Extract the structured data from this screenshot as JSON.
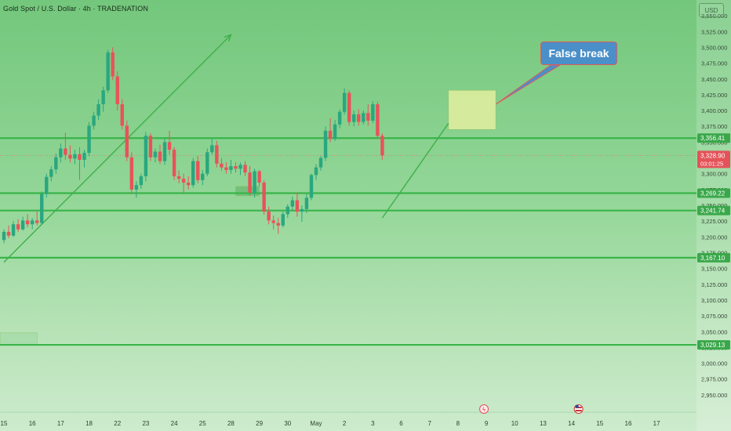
{
  "header": {
    "title": "Gold Spot / U.S. Dollar · 4h · TRADENATION",
    "currency_button": "USD"
  },
  "annotation": {
    "label": "False break"
  },
  "colors": {
    "bull": "#2aa77f",
    "bear": "#e9525a",
    "level_line": "#39b54a",
    "zone_fill": "#e3ef9f",
    "trend_line": "#3fb04a",
    "price_label_green": "#3aa84a",
    "price_label_red": "#e45359"
  },
  "chart_data": {
    "type": "candlestick",
    "title": "Gold Spot / U.S. Dollar · 4h · TRADENATION",
    "y_axis": {
      "min": 2930,
      "max": 3575,
      "ticks": [
        2950,
        2975,
        3000,
        3025,
        3050,
        3075,
        3100,
        3125,
        3150,
        3175,
        3200,
        3225,
        3250,
        3275,
        3300,
        3325,
        3350,
        3375,
        3400,
        3425,
        3450,
        3475,
        3500,
        3525,
        3550
      ]
    },
    "x_axis": {
      "tick_labels": [
        {
          "label": "15",
          "index": 0
        },
        {
          "label": "16",
          "index": 6
        },
        {
          "label": "17",
          "index": 12
        },
        {
          "label": "18",
          "index": 18
        },
        {
          "label": "22",
          "index": 24
        },
        {
          "label": "23",
          "index": 30
        },
        {
          "label": "24",
          "index": 36
        },
        {
          "label": "25",
          "index": 42
        },
        {
          "label": "28",
          "index": 48
        },
        {
          "label": "29",
          "index": 54
        },
        {
          "label": "30",
          "index": 60
        },
        {
          "label": "May",
          "index": 66
        },
        {
          "label": "2",
          "index": 72
        },
        {
          "label": "3",
          "index": 78
        },
        {
          "label": "6",
          "index": 84
        },
        {
          "label": "7",
          "index": 90
        },
        {
          "label": "8",
          "index": 96
        },
        {
          "label": "9",
          "index": 102
        },
        {
          "label": "10",
          "index": 108
        },
        {
          "label": "13",
          "index": 114
        },
        {
          "label": "14",
          "index": 120
        },
        {
          "label": "15",
          "index": 126
        },
        {
          "label": "16",
          "index": 132
        },
        {
          "label": "17",
          "index": 138
        }
      ]
    },
    "candles": [
      {
        "o": 3195,
        "h": 3212,
        "l": 3190,
        "c": 3208
      },
      {
        "o": 3208,
        "h": 3218,
        "l": 3198,
        "c": 3202
      },
      {
        "o": 3202,
        "h": 3225,
        "l": 3200,
        "c": 3220
      },
      {
        "o": 3220,
        "h": 3228,
        "l": 3208,
        "c": 3212
      },
      {
        "o": 3212,
        "h": 3232,
        "l": 3210,
        "c": 3226
      },
      {
        "o": 3226,
        "h": 3236,
        "l": 3215,
        "c": 3220
      },
      {
        "o": 3220,
        "h": 3230,
        "l": 3212,
        "c": 3226
      },
      {
        "o": 3226,
        "h": 3240,
        "l": 3218,
        "c": 3222
      },
      {
        "o": 3222,
        "h": 3272,
        "l": 3220,
        "c": 3268
      },
      {
        "o": 3268,
        "h": 3300,
        "l": 3262,
        "c": 3295
      },
      {
        "o": 3295,
        "h": 3312,
        "l": 3288,
        "c": 3307
      },
      {
        "o": 3307,
        "h": 3332,
        "l": 3300,
        "c": 3326
      },
      {
        "o": 3326,
        "h": 3348,
        "l": 3318,
        "c": 3340
      },
      {
        "o": 3340,
        "h": 3365,
        "l": 3322,
        "c": 3330
      },
      {
        "o": 3330,
        "h": 3345,
        "l": 3318,
        "c": 3324
      },
      {
        "o": 3324,
        "h": 3338,
        "l": 3315,
        "c": 3331
      },
      {
        "o": 3331,
        "h": 3342,
        "l": 3290,
        "c": 3322
      },
      {
        "o": 3322,
        "h": 3338,
        "l": 3310,
        "c": 3333
      },
      {
        "o": 3333,
        "h": 3382,
        "l": 3328,
        "c": 3376
      },
      {
        "o": 3376,
        "h": 3398,
        "l": 3370,
        "c": 3392
      },
      {
        "o": 3392,
        "h": 3418,
        "l": 3385,
        "c": 3410
      },
      {
        "o": 3410,
        "h": 3438,
        "l": 3398,
        "c": 3432
      },
      {
        "o": 3432,
        "h": 3496,
        "l": 3428,
        "c": 3492
      },
      {
        "o": 3492,
        "h": 3500,
        "l": 3448,
        "c": 3454
      },
      {
        "o": 3454,
        "h": 3462,
        "l": 3400,
        "c": 3410
      },
      {
        "o": 3410,
        "h": 3418,
        "l": 3370,
        "c": 3376
      },
      {
        "o": 3376,
        "h": 3384,
        "l": 3320,
        "c": 3326
      },
      {
        "o": 3326,
        "h": 3334,
        "l": 3268,
        "c": 3275
      },
      {
        "o": 3275,
        "h": 3288,
        "l": 3262,
        "c": 3282
      },
      {
        "o": 3282,
        "h": 3300,
        "l": 3276,
        "c": 3296
      },
      {
        "o": 3296,
        "h": 3366,
        "l": 3288,
        "c": 3360
      },
      {
        "o": 3360,
        "h": 3364,
        "l": 3320,
        "c": 3326
      },
      {
        "o": 3326,
        "h": 3340,
        "l": 3318,
        "c": 3335
      },
      {
        "o": 3335,
        "h": 3346,
        "l": 3315,
        "c": 3320
      },
      {
        "o": 3320,
        "h": 3356,
        "l": 3314,
        "c": 3350
      },
      {
        "o": 3350,
        "h": 3368,
        "l": 3330,
        "c": 3338
      },
      {
        "o": 3338,
        "h": 3342,
        "l": 3290,
        "c": 3296
      },
      {
        "o": 3296,
        "h": 3305,
        "l": 3285,
        "c": 3292
      },
      {
        "o": 3292,
        "h": 3300,
        "l": 3270,
        "c": 3286
      },
      {
        "o": 3286,
        "h": 3296,
        "l": 3275,
        "c": 3282
      },
      {
        "o": 3282,
        "h": 3325,
        "l": 3278,
        "c": 3320
      },
      {
        "o": 3320,
        "h": 3328,
        "l": 3285,
        "c": 3290
      },
      {
        "o": 3290,
        "h": 3306,
        "l": 3282,
        "c": 3300
      },
      {
        "o": 3300,
        "h": 3340,
        "l": 3296,
        "c": 3334
      },
      {
        "o": 3334,
        "h": 3355,
        "l": 3330,
        "c": 3345
      },
      {
        "o": 3345,
        "h": 3352,
        "l": 3310,
        "c": 3316
      },
      {
        "o": 3316,
        "h": 3325,
        "l": 3305,
        "c": 3310
      },
      {
        "o": 3310,
        "h": 3318,
        "l": 3300,
        "c": 3306
      },
      {
        "o": 3306,
        "h": 3322,
        "l": 3300,
        "c": 3312
      },
      {
        "o": 3312,
        "h": 3318,
        "l": 3302,
        "c": 3308
      },
      {
        "o": 3308,
        "h": 3318,
        "l": 3298,
        "c": 3314
      },
      {
        "o": 3314,
        "h": 3320,
        "l": 3296,
        "c": 3302
      },
      {
        "o": 3302,
        "h": 3312,
        "l": 3265,
        "c": 3270
      },
      {
        "o": 3270,
        "h": 3308,
        "l": 3262,
        "c": 3304
      },
      {
        "o": 3304,
        "h": 3306,
        "l": 3280,
        "c": 3286
      },
      {
        "o": 3286,
        "h": 3290,
        "l": 3235,
        "c": 3240
      },
      {
        "o": 3240,
        "h": 3248,
        "l": 3220,
        "c": 3226
      },
      {
        "o": 3226,
        "h": 3234,
        "l": 3212,
        "c": 3222
      },
      {
        "o": 3222,
        "h": 3230,
        "l": 3205,
        "c": 3218
      },
      {
        "o": 3218,
        "h": 3240,
        "l": 3215,
        "c": 3236
      },
      {
        "o": 3236,
        "h": 3252,
        "l": 3230,
        "c": 3248
      },
      {
        "o": 3248,
        "h": 3264,
        "l": 3242,
        "c": 3258
      },
      {
        "o": 3258,
        "h": 3270,
        "l": 3232,
        "c": 3240
      },
      {
        "o": 3240,
        "h": 3250,
        "l": 3224,
        "c": 3244
      },
      {
        "o": 3244,
        "h": 3268,
        "l": 3238,
        "c": 3262
      },
      {
        "o": 3262,
        "h": 3300,
        "l": 3258,
        "c": 3298
      },
      {
        "o": 3298,
        "h": 3315,
        "l": 3290,
        "c": 3310
      },
      {
        "o": 3310,
        "h": 3328,
        "l": 3305,
        "c": 3325
      },
      {
        "o": 3325,
        "h": 3375,
        "l": 3320,
        "c": 3368
      },
      {
        "o": 3368,
        "h": 3388,
        "l": 3350,
        "c": 3355
      },
      {
        "o": 3355,
        "h": 3385,
        "l": 3352,
        "c": 3378
      },
      {
        "o": 3378,
        "h": 3402,
        "l": 3372,
        "c": 3398
      },
      {
        "o": 3398,
        "h": 3435,
        "l": 3394,
        "c": 3428
      },
      {
        "o": 3428,
        "h": 3432,
        "l": 3376,
        "c": 3382
      },
      {
        "o": 3382,
        "h": 3400,
        "l": 3375,
        "c": 3394
      },
      {
        "o": 3394,
        "h": 3402,
        "l": 3376,
        "c": 3382
      },
      {
        "o": 3382,
        "h": 3400,
        "l": 3378,
        "c": 3396
      },
      {
        "o": 3396,
        "h": 3410,
        "l": 3376,
        "c": 3384
      },
      {
        "o": 3384,
        "h": 3415,
        "l": 3380,
        "c": 3410
      },
      {
        "o": 3410,
        "h": 3414,
        "l": 3356,
        "c": 3360
      },
      {
        "o": 3360,
        "h": 3364,
        "l": 3322,
        "c": 3329
      }
    ],
    "levels": [
      3356.41,
      3269.22,
      3241.74,
      3167.1,
      3029.13
    ],
    "price_labels": [
      {
        "value": 3356.41,
        "text": "3,356.41",
        "style": "green"
      },
      {
        "value": 3328.9,
        "text": "3,328.90",
        "sub": "03:01:25",
        "style": "red"
      },
      {
        "value": 3269.22,
        "text": "3,269.22",
        "style": "green"
      },
      {
        "value": 3241.74,
        "text": "3,241.74",
        "style": "green"
      },
      {
        "value": 3167.1,
        "text": "3,167.10",
        "style": "green"
      },
      {
        "value": 3029.13,
        "text": "3,029.13",
        "style": "green"
      }
    ],
    "current_price": 3328.9,
    "trendlines": [
      {
        "from": {
          "index": 0,
          "price": 3160
        },
        "to": {
          "index": 48,
          "price": 3520
        },
        "arrow": true
      },
      {
        "from": {
          "index": 80,
          "price": 3230
        },
        "to": {
          "index": 94,
          "price": 3380
        },
        "arrow": false
      }
    ],
    "zones": [
      {
        "from_index": 94,
        "to_index": 104,
        "top": 3432,
        "bottom": 3370,
        "fill": "#e3ef9f"
      },
      {
        "from_index": 49,
        "to_index": 54,
        "top": 3280,
        "bottom": 3265,
        "fill": "#6fbd76"
      },
      {
        "from_index": -1,
        "to_index": 7,
        "top": 3048,
        "bottom": 3030,
        "fill": "#a7dca9"
      }
    ],
    "grid": false,
    "legend": "none"
  }
}
